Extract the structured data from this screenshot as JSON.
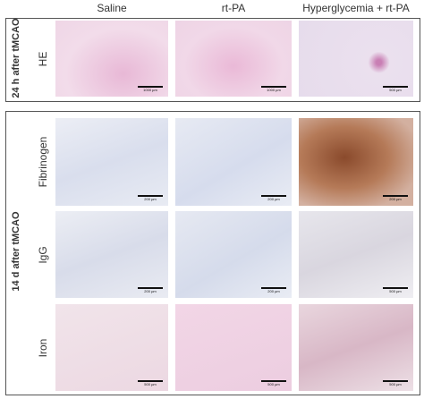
{
  "columns": [
    "Saline",
    "rt-PA",
    "Hyperglycemia + rt-PA"
  ],
  "panels": [
    {
      "group_label": "24 h after tMCAO",
      "rows": [
        {
          "label": "HE",
          "scale_bars": [
            "1000 µm",
            "1000 µm",
            "500 µm"
          ]
        }
      ]
    },
    {
      "group_label": "14 d after tMCAO",
      "rows": [
        {
          "label": "Fibrinogen",
          "scale_bars": [
            "200 µm",
            "200 µm",
            "200 µm"
          ]
        },
        {
          "label": "IgG",
          "scale_bars": [
            "200 µm",
            "200 µm",
            "500 µm"
          ]
        },
        {
          "label": "Iron",
          "scale_bars": [
            "500 µm",
            "500 µm",
            "500 µm"
          ]
        }
      ]
    }
  ]
}
